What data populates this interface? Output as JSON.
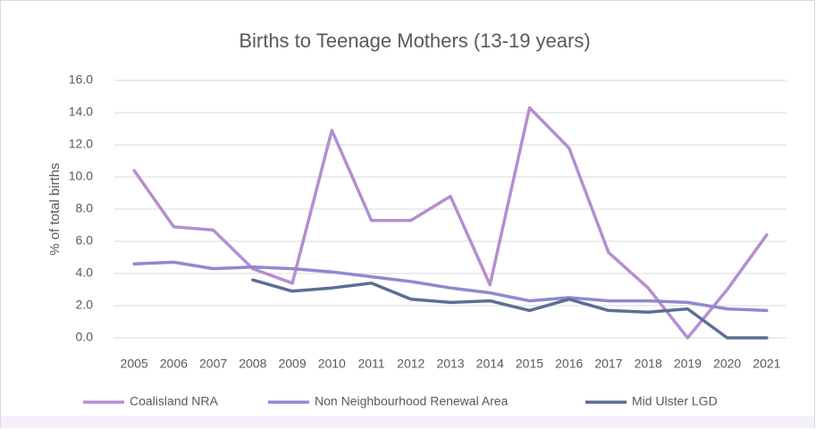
{
  "chart_data": {
    "type": "line",
    "title": "Births to Teenage Mothers (13-19 years)",
    "y_label": "% of total births",
    "categories": [
      "2005",
      "2006",
      "2007",
      "2008",
      "2009",
      "2010",
      "2011",
      "2012",
      "2013",
      "2014",
      "2015",
      "2016",
      "2017",
      "2018",
      "2019",
      "2020",
      "2021"
    ],
    "series": [
      {
        "name": "Coalisland NRA",
        "color": "#b48ed2",
        "values": [
          10.4,
          6.9,
          6.7,
          4.3,
          3.4,
          12.9,
          7.3,
          7.3,
          8.8,
          3.3,
          14.3,
          11.8,
          5.3,
          3.1,
          0.0,
          3.0,
          6.4
        ]
      },
      {
        "name": "Non Neighbourhood Renewal Area",
        "color": "#8f89d0",
        "values": [
          4.6,
          4.7,
          4.3,
          4.4,
          4.3,
          4.1,
          3.8,
          3.5,
          3.1,
          2.8,
          2.3,
          2.5,
          2.3,
          2.3,
          2.2,
          1.8,
          1.7
        ]
      },
      {
        "name": "Mid Ulster LGD",
        "color": "#5b6f92",
        "values": [
          null,
          null,
          null,
          3.6,
          2.9,
          3.1,
          3.4,
          2.4,
          2.2,
          2.3,
          1.7,
          2.4,
          1.7,
          1.6,
          1.8,
          0.0,
          0.0
        ]
      }
    ],
    "ylim": [
      0,
      16
    ],
    "yticks": [
      {
        "value": 0,
        "label": "0.0"
      },
      {
        "value": 2,
        "label": "2.0"
      },
      {
        "value": 4,
        "label": "4.0"
      },
      {
        "value": 6,
        "label": "6.0"
      },
      {
        "value": 8,
        "label": "8.0"
      },
      {
        "value": 10,
        "label": "10.0"
      },
      {
        "value": 12,
        "label": "12.0"
      },
      {
        "value": 14,
        "label": "14.0"
      },
      {
        "value": 16,
        "label": "16.0"
      }
    ],
    "grid": true,
    "legend": "bottom"
  }
}
